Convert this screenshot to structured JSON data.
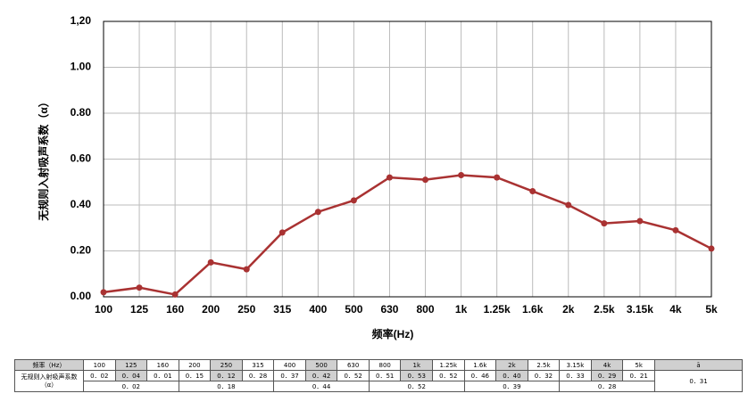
{
  "chart_data": {
    "type": "line",
    "y_title": "无规则入射吸声系数（α）",
    "x_title": "频率(Hz)",
    "categories": [
      "100",
      "125",
      "160",
      "200",
      "250",
      "315",
      "400",
      "500",
      "630",
      "800",
      "1k",
      "1.25k",
      "1.6k",
      "2k",
      "2.5k",
      "3.15k",
      "4k",
      "5k"
    ],
    "values": [
      0.02,
      0.04,
      0.01,
      0.15,
      0.12,
      0.28,
      0.37,
      0.42,
      0.52,
      0.51,
      0.53,
      0.52,
      0.46,
      0.4,
      0.32,
      0.33,
      0.29,
      0.21
    ],
    "color": "#a93232",
    "ylim": [
      0,
      1.2
    ],
    "yticks": [
      {
        "value": 0,
        "label": "0.00"
      },
      {
        "value": 0.2,
        "label": "0.20"
      },
      {
        "value": 0.4,
        "label": "0.40"
      },
      {
        "value": 0.6,
        "label": "0.60"
      },
      {
        "value": 0.8,
        "label": "0.80"
      },
      {
        "value": 1,
        "label": "1.00"
      },
      {
        "value": 1.2,
        "label": "1,20"
      }
    ],
    "grid": true
  },
  "table": {
    "header": [
      "频率（Hz）",
      "100",
      "125",
      "160",
      "200",
      "250",
      "315",
      "400",
      "500",
      "630",
      "800",
      "1k",
      "1.25k",
      "1.6k",
      "2k",
      "2.5k",
      "3.15k",
      "4k",
      "5k",
      "ā"
    ],
    "label": "无规则入射吸声系数（α）",
    "values": [
      "0．02",
      "0．04",
      "0．01",
      "0．15",
      "0．12",
      "0．28",
      "0．37",
      "0．42",
      "0．52",
      "0．51",
      "0．53",
      "0．52",
      "0．46",
      "0．40",
      "0．32",
      "0．33",
      "0．29",
      "0．21"
    ],
    "group_averages": [
      "0．02",
      "0．18",
      "0．44",
      "0．52",
      "0．39",
      "0．28"
    ],
    "average": "0．31"
  }
}
